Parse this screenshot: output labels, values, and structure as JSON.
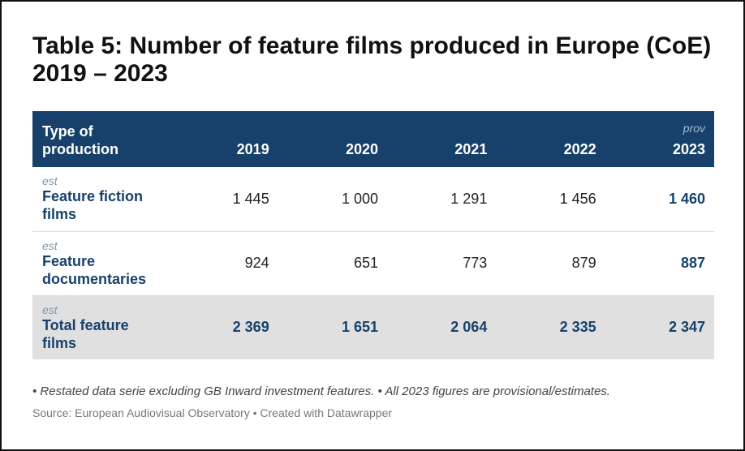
{
  "title": "Table 5: Number of feature films produced in Europe (CoE) 2019 – 2023",
  "chart_data": {
    "type": "table",
    "title": "Table 5: Number of feature films produced in Europe (CoE) 2019 – 2023",
    "columns": [
      "Type of production",
      "2019",
      "2020",
      "2021",
      "2022",
      "2023"
    ],
    "column_notes": [
      "",
      "",
      "",
      "",
      "",
      "prov"
    ],
    "rows": [
      {
        "note": "est",
        "label": "Feature fiction films",
        "values": [
          "1 445",
          "1 000",
          "1 291",
          "1 456",
          "1 460"
        ]
      },
      {
        "note": "est",
        "label": "Feature documentaries",
        "values": [
          "924",
          "651",
          "773",
          "879",
          "887"
        ]
      },
      {
        "note": "est",
        "label": "Total feature films",
        "values": [
          "2 369",
          "1 651",
          "2 064",
          "2 335",
          "2 347"
        ]
      }
    ],
    "colors": {
      "header_background": "#17416b",
      "header_text": "#ffffff",
      "highlight_text": "#17416b",
      "total_row_background": "#e0e0e0"
    }
  },
  "footnote": "• Restated data serie excluding GB Inward investment features. • All 2023 figures are provisional/estimates.",
  "source": "Source: European Audiovisual Observatory • Created with Datawrapper"
}
